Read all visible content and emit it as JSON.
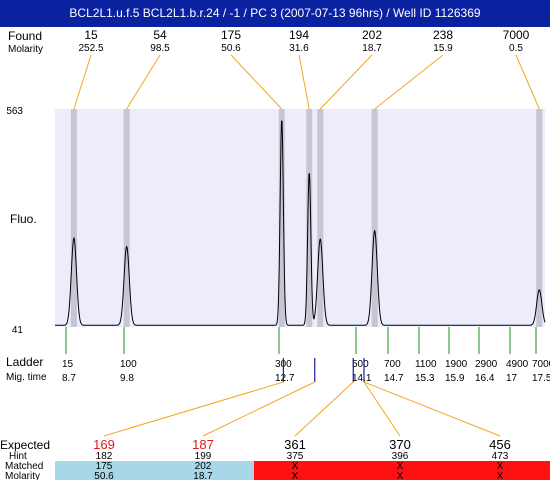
{
  "title": "BCL2L1.u.f.5  BCL2L1.b.r.24 / -1 / PC 3 (2007-07-13 96hrs) / Well ID 1126369",
  "labels": {
    "found": "Found",
    "molarity": "Molarity",
    "fluo": "Fluo.",
    "ladder": "Ladder",
    "mig_time": "Mig. time",
    "expected": "Expected",
    "hint": "Hint",
    "matched": "Matched",
    "molarity2": "Molarity"
  },
  "colors": {
    "title_bg": "#0b22a0",
    "plot_bg": "#ececfa",
    "peak_band": "#c6c6d2",
    "orange_line": "#f5a623",
    "ladder_green": "#1a8f1a",
    "marker_blue": "#1a1aa0",
    "expected_red": "#e8141a",
    "matched_blue": "#a8d8e8",
    "unmatched_red": "#ff1111"
  },
  "chart_data": {
    "type": "line",
    "ylim": [
      41,
      563
    ],
    "yticks": [
      "563",
      "41"
    ],
    "found": [
      {
        "size": "15",
        "molarity": "252.5",
        "x": 8.85,
        "height": 209
      },
      {
        "size": "54",
        "molarity": "98.5",
        "x": 9.85,
        "height": 189
      },
      {
        "size": "175",
        "molarity": "50.6",
        "x": 12.75,
        "height": 495
      },
      {
        "size": "194",
        "molarity": "31.6",
        "x": 13.25,
        "height": 367
      },
      {
        "size": "202",
        "molarity": "18.7",
        "x": 13.45,
        "height": 207
      },
      {
        "size": "238",
        "molarity": "15.9",
        "x": 14.45,
        "height": 227
      },
      {
        "size": "7000",
        "molarity": "0.5",
        "x": 17.9,
        "height": 85
      }
    ],
    "ladder": [
      {
        "size": "15",
        "time": "8.7",
        "x": 8.7
      },
      {
        "size": "100",
        "time": "9.8",
        "x": 9.8
      },
      {
        "size": "300",
        "time": "12.7",
        "x": 12.7
      },
      {
        "size": "500",
        "time": "14.1",
        "x": 14.1
      },
      {
        "size": "700",
        "time": "14.7",
        "x": 14.7
      },
      {
        "size": "1100",
        "time": "15.3",
        "x": 15.3
      },
      {
        "size": "1900",
        "time": "15.9",
        "x": 15.9
      },
      {
        "size": "2900",
        "time": "16.4",
        "x": 16.4
      },
      {
        "size": "4900",
        "time": "17",
        "x": 17.0
      },
      {
        "size": "7000",
        "time": "17.5",
        "x": 17.5
      }
    ],
    "markers": [
      {
        "x": 12.78,
        "target": 0
      },
      {
        "x": 13.35,
        "target": 1
      },
      {
        "x": 14.05,
        "target": 2
      },
      {
        "x": 14.25,
        "target": 3
      }
    ],
    "expected": [
      {
        "size": "169",
        "hint": "182",
        "matched": "175",
        "molarity": "50.6",
        "ok": true
      },
      {
        "size": "187",
        "hint": "199",
        "matched": "202",
        "molarity": "18.7",
        "ok": true
      },
      {
        "size": "361",
        "hint": "375",
        "matched": "X",
        "molarity": "X",
        "ok": false
      },
      {
        "size": "370",
        "hint": "396",
        "matched": "X",
        "molarity": "X",
        "ok": false
      },
      {
        "size": "456",
        "hint": "473",
        "matched": "X",
        "molarity": "X",
        "ok": false
      }
    ]
  }
}
